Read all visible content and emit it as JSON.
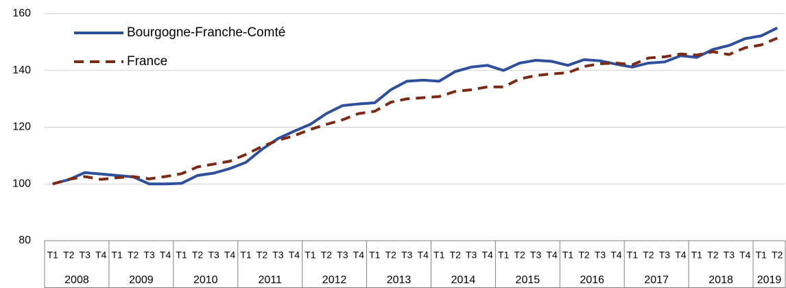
{
  "chart_data": {
    "type": "line",
    "categories": [
      "T1",
      "T2",
      "T3",
      "T4",
      "T1",
      "T2",
      "T3",
      "T4",
      "T1",
      "T2",
      "T3",
      "T4",
      "T1",
      "T2",
      "T3",
      "T4",
      "T1",
      "T2",
      "T3",
      "T4",
      "T1",
      "T2",
      "T3",
      "T4",
      "T1",
      "T2",
      "T3",
      "T4",
      "T1",
      "T2",
      "T3",
      "T4",
      "T1",
      "T2",
      "T3",
      "T4",
      "T1",
      "T2",
      "T3",
      "T4",
      "T1",
      "T2",
      "T3",
      "T4",
      "T1",
      "T2"
    ],
    "years": [
      "2008",
      "2009",
      "2010",
      "2011",
      "2012",
      "2013",
      "2014",
      "2015",
      "2016",
      "2017",
      "2018",
      "2019"
    ],
    "series": [
      {
        "name": "Bourgogne-Franche-Comté",
        "color": "#2e4f9e",
        "dashed": false,
        "values": [
          100,
          101.5,
          104,
          103.5,
          103,
          102.5,
          100,
          100,
          100.2,
          103,
          103.8,
          105.4,
          107.6,
          112.2,
          116,
          118.6,
          121,
          124.8,
          127.6,
          128.2,
          128.6,
          133.2,
          136.2,
          136.6,
          136.2,
          139.6,
          141.2,
          141.8,
          140,
          142.6,
          143.6,
          143.2,
          141.8,
          143.8,
          143.4,
          142.2,
          141.2,
          142.6,
          143,
          145.2,
          144.6,
          147.4,
          148.8,
          151.2,
          152.2,
          155
        ]
      },
      {
        "name": "France",
        "color": "#7b2a14",
        "dashed": true,
        "values": [
          100,
          101.6,
          102.6,
          101.6,
          102.2,
          102.6,
          101.8,
          102.6,
          103.6,
          106,
          107,
          108,
          110.4,
          113.2,
          115.4,
          117,
          119.2,
          121,
          122.6,
          124.8,
          125.6,
          128.8,
          130,
          130.4,
          130.8,
          132.6,
          133.2,
          134.2,
          134.2,
          137,
          138.2,
          138.8,
          139.2,
          141.4,
          142.4,
          142.6,
          142,
          144.4,
          144.8,
          145.8,
          145.4,
          146.6,
          145.6,
          148,
          149,
          151.4
        ]
      }
    ],
    "ylim": [
      80,
      160
    ],
    "yticks": [
      80,
      100,
      120,
      140,
      160
    ],
    "grid": true
  }
}
